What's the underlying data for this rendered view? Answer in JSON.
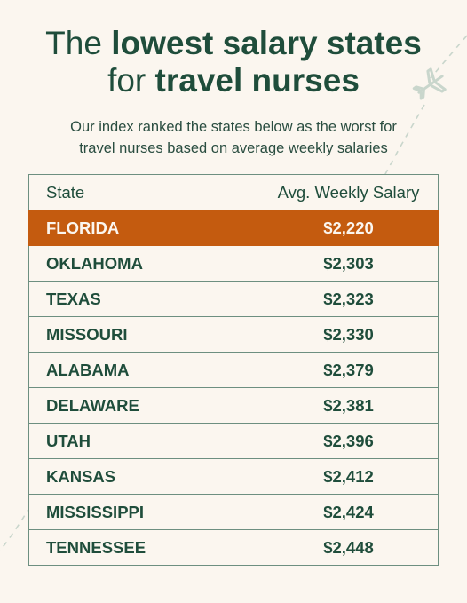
{
  "title": {
    "line1_prefix": "The",
    "line1_bold": "lowest salary states",
    "line2_prefix": "for",
    "line2_bold": "travel nurses"
  },
  "subtitle": {
    "line1": "Our index ranked the states below as the worst for",
    "line2": "travel nurses based on average weekly salaries"
  },
  "table": {
    "headers": [
      "State",
      "Avg. Weekly Salary"
    ],
    "rows": [
      {
        "state": "FLORIDA",
        "salary": "$2,220",
        "highlight": true
      },
      {
        "state": "OKLAHOMA",
        "salary": "$2,303"
      },
      {
        "state": "TEXAS",
        "salary": "$2,323"
      },
      {
        "state": "MISSOURI",
        "salary": "$2,330"
      },
      {
        "state": "ALABAMA",
        "salary": "$2,379"
      },
      {
        "state": "DELAWARE",
        "salary": "$2,381"
      },
      {
        "state": "UTAH",
        "salary": "$2,396"
      },
      {
        "state": "KANSAS",
        "salary": "$2,412"
      },
      {
        "state": "MISSISSIPPI",
        "salary": "$2,424"
      },
      {
        "state": "TENNESSEE",
        "salary": "$2,448"
      }
    ]
  },
  "colors": {
    "background": "#fbf6ef",
    "text": "#1f4d3b",
    "highlight": "#c45b0f",
    "border": "#6d8f80",
    "decoration": "#c9d6cc"
  },
  "icons": [
    "airplane-icon"
  ]
}
